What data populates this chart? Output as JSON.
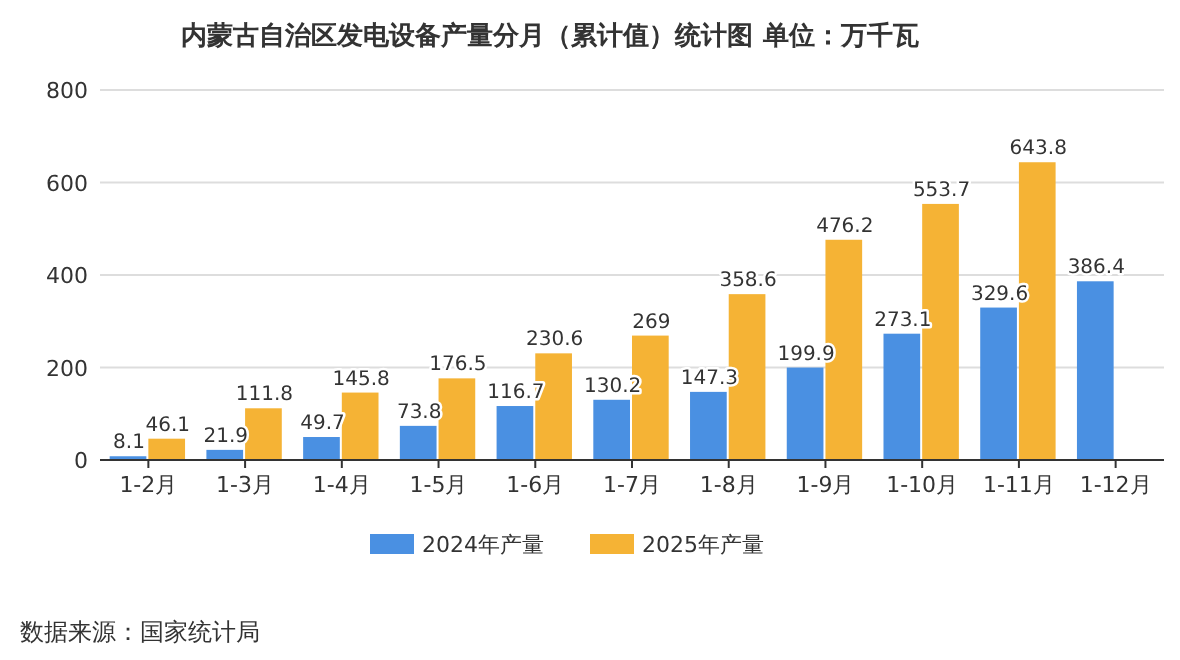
{
  "chart_data": {
    "type": "bar",
    "title": "内蒙古自治区发电设备产量分月（累计值）统计图  单位：万千瓦",
    "categories": [
      "1-2月",
      "1-3月",
      "1-4月",
      "1-5月",
      "1-6月",
      "1-7月",
      "1-8月",
      "1-9月",
      "1-10月",
      "1-11月",
      "1-12月"
    ],
    "series": [
      {
        "name": "2024年产量",
        "color": "#4a90e2",
        "values": [
          8.1,
          21.9,
          49.7,
          73.8,
          116.7,
          130.2,
          147.3,
          199.9,
          273.1,
          329.6,
          386.4
        ]
      },
      {
        "name": "2025年产量",
        "color": "#f5b335",
        "values": [
          46.1,
          111.8,
          145.8,
          176.5,
          230.6,
          269,
          358.6,
          476.2,
          553.7,
          643.8,
          null
        ]
      }
    ],
    "ylim": [
      0,
      800
    ],
    "yticks": [
      0,
      200,
      400,
      600,
      800
    ],
    "grid": "y",
    "legend": "bottom",
    "data_labels": true,
    "annotations": [
      "数据来源：国家统计局"
    ]
  }
}
